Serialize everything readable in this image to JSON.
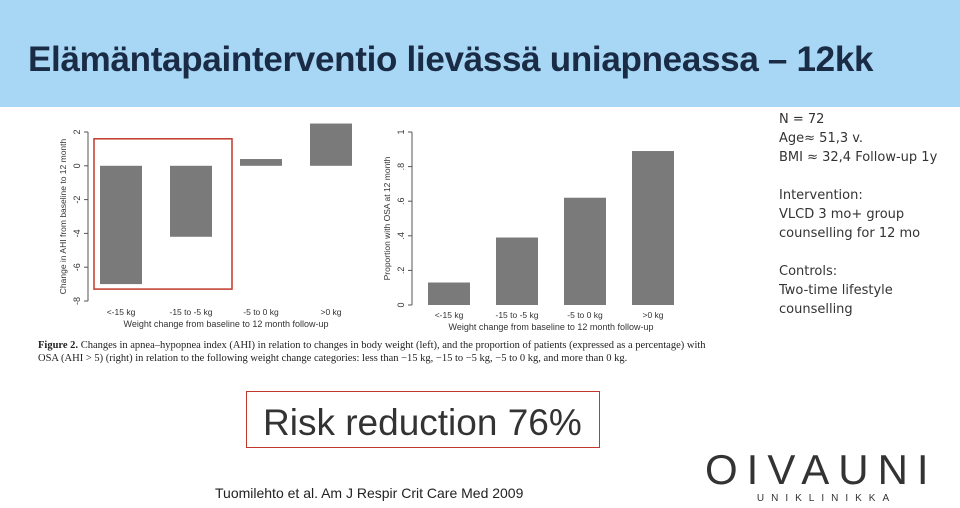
{
  "header": {
    "title": "Elämäntapainterventio lievässä uniapneassa – 12kk"
  },
  "chart_data": [
    {
      "type": "bar",
      "categories": [
        "<-15 kg",
        "-15 to -5 kg",
        "-5 to 0 kg",
        ">0 kg"
      ],
      "values": [
        -7.0,
        -4.2,
        0.4,
        2.5
      ],
      "xlabel": "Weight change from baseline to 12 month follow-up",
      "ylabel": "Change in AHI from baseline to 12 month",
      "ylim": [
        -8,
        2
      ],
      "yticks": [
        "-8",
        "-6",
        "-4",
        "-2",
        "0",
        "2"
      ],
      "highlight_categories": [
        "<-15 kg",
        "-15 to -5 kg"
      ],
      "highlight_color": "#c0392b",
      "bar_color": "#7a7a7a",
      "grid": false
    },
    {
      "type": "bar",
      "categories": [
        "<-15 kg",
        "-15 to -5 kg",
        "-5 to 0 kg",
        ">0 kg"
      ],
      "values": [
        0.13,
        0.39,
        0.62,
        0.89
      ],
      "xlabel": "Weight change from baseline to 12 month follow-up",
      "ylabel": "Proportion with OSA at 12 month",
      "ylim": [
        0,
        1
      ],
      "yticks": [
        "0",
        ".2",
        ".4",
        ".6",
        ".8",
        "1"
      ],
      "bar_color": "#7a7a7a",
      "grid": false
    }
  ],
  "caption": {
    "label": "Figure 2.",
    "text": "Changes in apnea–hypopnea index (AHI) in relation to changes in body weight (left), and the proportion of patients (expressed as a percentage) with OSA (AHI > 5) (right) in relation to the following weight change categories: less than −15 kg, −15 to −5 kg, −5 to 0 kg, and more than 0 kg."
  },
  "study": {
    "n": "N = 72",
    "age": "Age≈ 51,3 v.",
    "bmi": "BMI ≈ 32,4 Follow-up 1y",
    "intervention_label": "Intervention:",
    "intervention_text": "VLCD 3 mo+ group counselling for 12 mo",
    "controls_label": "Controls:",
    "controls_text": "Two-time lifestyle counselling"
  },
  "risk": {
    "text": "Risk reduction 76%"
  },
  "reference": "Tuomilehto et al. Am J Respir Crit Care Med 2009",
  "logo": {
    "main": "OIVAUNI",
    "sub": "UNIKLINIKKA"
  }
}
